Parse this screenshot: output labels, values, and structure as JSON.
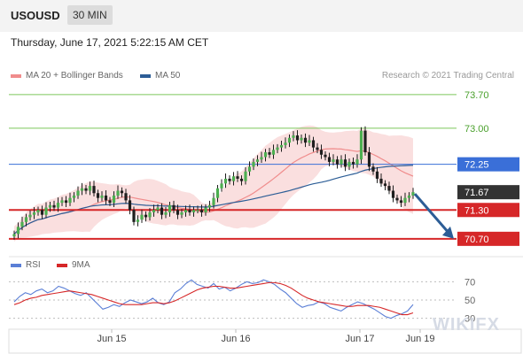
{
  "header": {
    "symbol": "USOUSD",
    "timeframe": "30 MIN"
  },
  "datetime": "Thursday, June 17, 2021 5:22:15 AM CET",
  "legend": [
    {
      "label": "MA 20 + Bollinger Bands",
      "color": "#f08c8c"
    },
    {
      "label": "MA 50",
      "color": "#2c5d96"
    }
  ],
  "credit": "Research © 2021 Trading Central",
  "watermark": "WIKIFX",
  "rsi_legend": [
    {
      "label": "RSI",
      "color": "#5b7fd6"
    },
    {
      "label": "9MA",
      "color": "#d62728"
    }
  ],
  "colors": {
    "resistance": "#7cc85a",
    "pivot": "#3a6fd8",
    "support": "#d62728",
    "last": "#333333",
    "arrow": "#2c5d96"
  },
  "chart_data": [
    {
      "type": "candlestick",
      "ylim": [
        70.55,
        73.9
      ],
      "x_ticks": [
        "Jun 15",
        "Jun 16",
        "Jun 17",
        "Jun 19"
      ],
      "levels": [
        {
          "value": 73.7,
          "label": "73.70",
          "kind": "resistance"
        },
        {
          "value": 73.0,
          "label": "73.00",
          "kind": "resistance"
        },
        {
          "value": 72.25,
          "label": "72.25",
          "kind": "pivot"
        },
        {
          "value": 71.67,
          "label": "71.67",
          "kind": "last"
        },
        {
          "value": 71.3,
          "label": "71.30",
          "kind": "support"
        },
        {
          "value": 70.7,
          "label": "70.70",
          "kind": "support"
        }
      ],
      "closes": [
        70.8,
        70.95,
        71.05,
        71.15,
        71.2,
        71.25,
        71.3,
        71.2,
        71.35,
        71.4,
        71.35,
        71.45,
        71.5,
        71.45,
        71.55,
        71.6,
        71.7,
        71.75,
        71.7,
        71.8,
        71.65,
        71.55,
        71.6,
        71.5,
        71.45,
        71.6,
        71.7,
        71.65,
        71.5,
        71.3,
        71.05,
        71.1,
        71.2,
        71.15,
        71.25,
        71.3,
        71.35,
        71.2,
        71.25,
        71.4,
        71.3,
        71.2,
        71.25,
        71.3,
        71.25,
        71.3,
        71.3,
        71.25,
        71.35,
        71.4,
        71.55,
        71.75,
        71.85,
        71.95,
        71.9,
        72.0,
        71.95,
        71.9,
        72.1,
        72.2,
        72.3,
        72.35,
        72.4,
        72.5,
        72.45,
        72.55,
        72.6,
        72.65,
        72.7,
        72.8,
        72.85,
        72.75,
        72.8,
        72.7,
        72.75,
        72.6,
        72.55,
        72.45,
        72.4,
        72.3,
        72.35,
        72.25,
        72.35,
        72.2,
        72.3,
        72.25,
        72.35,
        72.95,
        72.5,
        72.2,
        72.1,
        71.95,
        71.85,
        71.8,
        71.7,
        71.55,
        71.5,
        71.45,
        71.55,
        71.6,
        71.67
      ],
      "arrow": {
        "to": 70.7
      }
    },
    {
      "type": "line",
      "ylim": [
        20,
        80
      ],
      "y_ticks": [
        30,
        50,
        70
      ],
      "series": [
        {
          "name": "RSI",
          "values": [
            48,
            54,
            58,
            56,
            60,
            62,
            58,
            60,
            65,
            63,
            60,
            57,
            55,
            58,
            52,
            46,
            40,
            42,
            45,
            43,
            47,
            50,
            48,
            46,
            48,
            52,
            47,
            45,
            48,
            58,
            62,
            68,
            72,
            67,
            65,
            63,
            68,
            62,
            64,
            60,
            63,
            67,
            70,
            68,
            69,
            72,
            70,
            67,
            62,
            58,
            52,
            46,
            42,
            44,
            45,
            48,
            46,
            42,
            40,
            38,
            42,
            45,
            48,
            46,
            43,
            40,
            36,
            32,
            30,
            33,
            35,
            38,
            45
          ]
        },
        {
          "name": "9MA",
          "values": [
            45,
            47,
            50,
            52,
            53,
            55,
            56,
            57,
            58,
            59,
            60,
            59,
            58,
            57,
            56,
            54,
            52,
            50,
            48,
            46,
            45,
            45,
            45,
            45,
            46,
            47,
            47,
            46,
            47,
            49,
            52,
            55,
            58,
            61,
            63,
            64,
            65,
            65,
            64,
            63,
            63,
            64,
            65,
            66,
            67,
            68,
            69,
            69,
            68,
            66,
            63,
            59,
            55,
            52,
            50,
            48,
            47,
            46,
            45,
            44,
            43,
            43,
            44,
            44,
            44,
            43,
            42,
            40,
            38,
            36,
            34,
            34,
            36
          ]
        }
      ]
    }
  ]
}
